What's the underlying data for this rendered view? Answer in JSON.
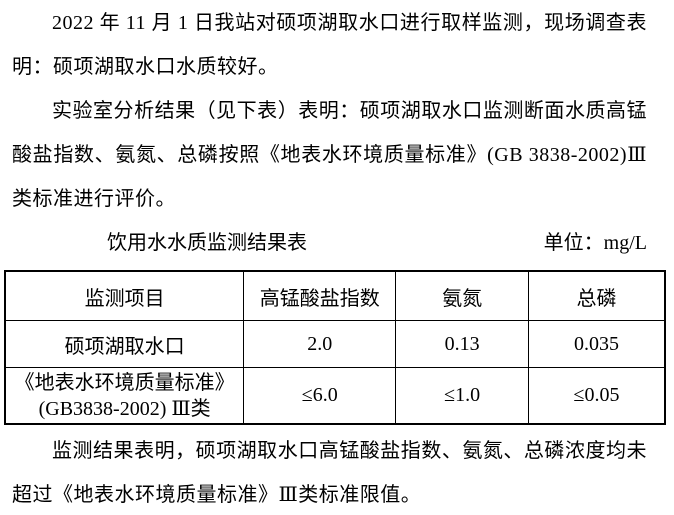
{
  "document": {
    "paragraphs": {
      "intro": "2022 年 11 月 1 日我站对硕项湖取水口进行取样监测，现场调查表明：硕项湖取水口水质较好。",
      "analysis": "实验室分析结果（见下表）表明：硕项湖取水口监测断面水质高锰酸盐指数、氨氮、总磷按照《地表水环境质量标准》(GB 3838-2002)Ⅲ类标准进行评价。",
      "conclusion": "监测结果表明，硕项湖取水口高锰酸盐指数、氨氮、总磷浓度均未超过《地表水环境质量标准》Ⅲ类标准限值。"
    },
    "caption": {
      "title": "饮用水水质监测结果表",
      "unit": "单位：mg/L"
    },
    "table": {
      "headers": [
        "监测项目",
        "高锰酸盐指数",
        "氨氮",
        "总磷"
      ],
      "rows": [
        {
          "cells": [
            "硕项湖取水口",
            "2.0",
            "0.13",
            "0.035"
          ]
        },
        {
          "cells": [
            "《地表水环境质量标准》\n(GB3838-2002) Ⅲ类",
            "≤6.0",
            "≤1.0",
            "≤0.05"
          ]
        }
      ]
    },
    "colors": {
      "text": "#000000",
      "background": "#ffffff",
      "table_border": "#000000"
    }
  }
}
